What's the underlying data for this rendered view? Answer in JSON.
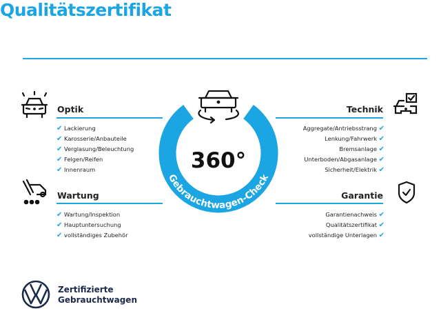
{
  "title": "Qualitätszertifikat",
  "badge": {
    "number": "360°",
    "ring_text": "Gebrauchtwagen-Check"
  },
  "sections": {
    "optik": {
      "title": "Optik",
      "icon": "car-lights-icon",
      "items": [
        "Lackierung",
        "Karosserie/Anbauteile",
        "Verglasung/Beleuchtung",
        "Felgen/Reifen",
        "Innenraum"
      ]
    },
    "wartung": {
      "title": "Wartung",
      "icon": "service-tool-car-icon",
      "items": [
        "Wartung/Inspektion",
        "Hauptuntersuchung",
        "vollständiges Zubehör"
      ]
    },
    "technik": {
      "title": "Technik",
      "icon": "car-checkbox-icon",
      "items": [
        "Aggregate/Antriebsstrang",
        "Lenkung/Fahrwerk",
        "Bremsanlage",
        "Unterboden/Abgasanlage",
        "Sicherheit/Elektrik"
      ]
    },
    "garantie": {
      "title": "Garantie",
      "icon": "shield-check-icon",
      "items": [
        "Garantienachweis",
        "Qualitätszertifikat",
        "vollständige Unterlagen"
      ]
    }
  },
  "check_mark": "✔",
  "brand": {
    "line1": "Zertifizierte",
    "line2": "Gebrauchtwagen",
    "logo": "vw-logo"
  },
  "colors": {
    "accent": "#1ba6e3",
    "text": "#1a1a1a",
    "logo": "#1a2a4a"
  }
}
